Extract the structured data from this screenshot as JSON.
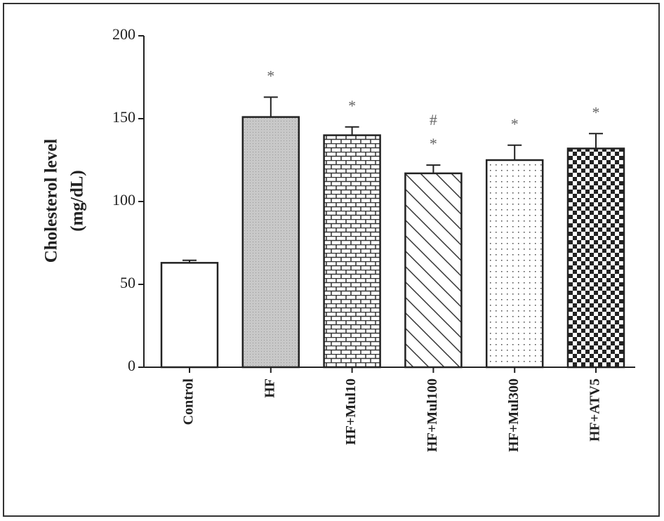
{
  "chart_data": {
    "type": "bar",
    "y_label": [
      "Cholesterol level",
      "(mg/dL)"
    ],
    "categories": [
      "Control",
      "HF",
      "HF+Mul10",
      "HF+Mul100",
      "HF+Mul300",
      "HF+ATV5"
    ],
    "values": [
      63,
      151,
      140,
      117,
      125,
      132
    ],
    "errors": [
      1.5,
      12,
      5,
      5,
      9,
      9
    ],
    "fills": [
      "none",
      "gray",
      "brick",
      "diagonal",
      "dots",
      "checker"
    ],
    "significance": [
      null,
      "*",
      "*",
      "*",
      "*",
      "*"
    ],
    "significance2": [
      null,
      null,
      null,
      "#",
      null,
      null
    ],
    "ylim": [
      0,
      200
    ],
    "yticks": [
      0,
      50,
      100,
      150,
      200
    ],
    "grid": false
  }
}
